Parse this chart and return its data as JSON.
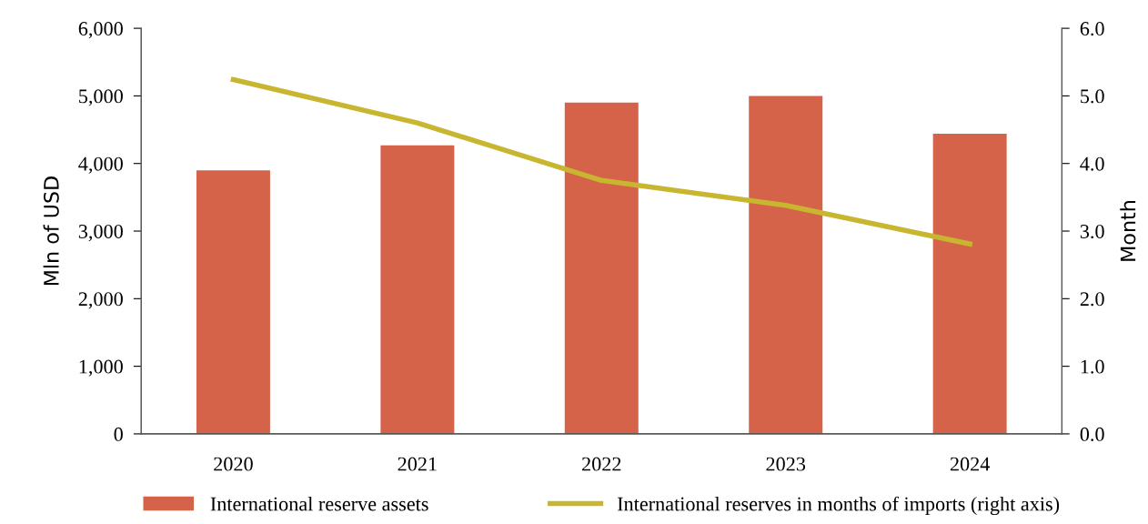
{
  "chart_data": {
    "type": "bar",
    "categories": [
      "2020",
      "2021",
      "2022",
      "2023",
      "2024"
    ],
    "series": [
      {
        "name": "International reserve assets",
        "color": "#d4634a",
        "values": [
          3900,
          4270,
          4900,
          5000,
          4440
        ]
      },
      {
        "name": "International reserves in months of imports (right axis)",
        "color": "#c9b630",
        "type": "line",
        "axis": "y2",
        "values": [
          5.24,
          4.6,
          3.75,
          3.38,
          2.81
        ]
      }
    ],
    "ylabel": "Mln of USD",
    "y2label": "Month",
    "ylim": [
      0,
      6000
    ],
    "yticks": [
      {
        "value": 0,
        "label": "0"
      },
      {
        "value": 1000,
        "label": "1,000"
      },
      {
        "value": 2000,
        "label": "2,000"
      },
      {
        "value": 3000,
        "label": "3,000"
      },
      {
        "value": 4000,
        "label": "4,000"
      },
      {
        "value": 5000,
        "label": "5,000"
      },
      {
        "value": 6000,
        "label": "6,000"
      }
    ],
    "y2lim": [
      0,
      6
    ],
    "y2ticks": [
      {
        "value": 0,
        "label": "0.0"
      },
      {
        "value": 1,
        "label": "1.0"
      },
      {
        "value": 2,
        "label": "2.0"
      },
      {
        "value": 3,
        "label": "3.0"
      },
      {
        "value": 4,
        "label": "4.0"
      },
      {
        "value": 5,
        "label": "5.0"
      },
      {
        "value": 6,
        "label": "6.0"
      }
    ],
    "legend": "bottom",
    "grid": false,
    "marker": "none",
    "line_style": "solid"
  }
}
